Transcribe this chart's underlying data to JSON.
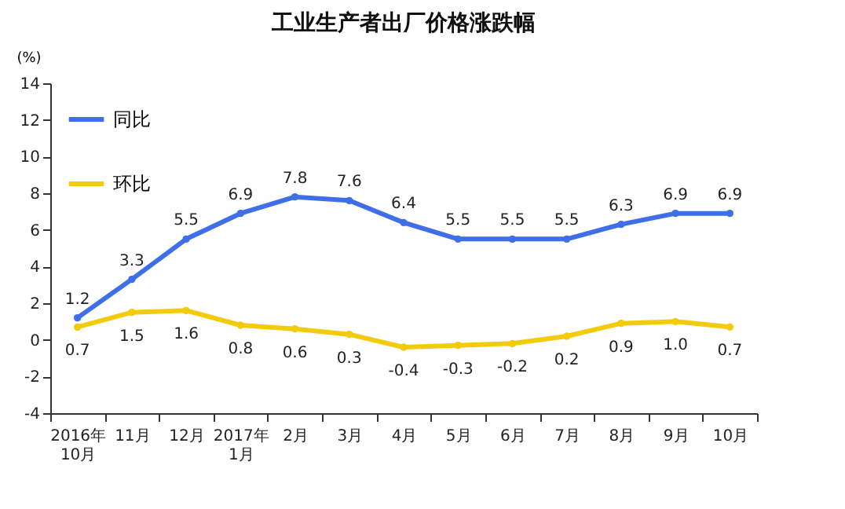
{
  "chart_data": {
    "type": "line",
    "title": "工业生产者出厂价格涨跌幅",
    "ylabel": "(%)",
    "categories": [
      "2016年\n10月",
      "11月",
      "12月",
      "2017年\n1月",
      "2月",
      "3月",
      "4月",
      "5月",
      "6月",
      "7月",
      "8月",
      "9月",
      "10月"
    ],
    "series": [
      {
        "name": "同比",
        "color": "#3f6fe8",
        "values": [
          1.2,
          3.3,
          5.5,
          6.9,
          7.8,
          7.6,
          6.4,
          5.5,
          5.5,
          5.5,
          6.3,
          6.9,
          6.9
        ],
        "value_labels": [
          "1.2",
          "3.3",
          "5.5",
          "6.9",
          "7.8",
          "7.6",
          "6.4",
          "5.5",
          "5.5",
          "5.5",
          "6.3",
          "6.9",
          "6.9"
        ]
      },
      {
        "name": "环比",
        "color": "#f2cc0c",
        "values": [
          0.7,
          1.5,
          1.6,
          0.8,
          0.6,
          0.3,
          -0.4,
          -0.3,
          -0.2,
          0.2,
          0.9,
          1.0,
          0.7
        ],
        "value_labels": [
          "0.7",
          "1.5",
          "1.6",
          "0.8",
          "0.6",
          "0.3",
          "-0.4",
          "-0.3",
          "-0.2",
          "0.2",
          "0.9",
          "1.0",
          "0.7"
        ]
      }
    ],
    "ylim": [
      -4,
      14
    ],
    "yticks": [
      -4,
      -2,
      0,
      2,
      4,
      6,
      8,
      10,
      12,
      14
    ],
    "grid": false,
    "legend": "top left",
    "marker": "circle",
    "line_style": "solid",
    "data_labels": true
  }
}
